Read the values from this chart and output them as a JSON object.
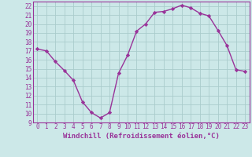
{
  "x": [
    0,
    1,
    2,
    3,
    4,
    5,
    6,
    7,
    8,
    9,
    10,
    11,
    12,
    13,
    14,
    15,
    16,
    17,
    18,
    19,
    20,
    21,
    22,
    23
  ],
  "y": [
    17.2,
    17.0,
    15.8,
    14.8,
    13.7,
    11.3,
    10.1,
    9.5,
    10.1,
    14.5,
    16.5,
    19.2,
    20.0,
    21.3,
    21.4,
    21.7,
    22.1,
    21.8,
    21.2,
    20.9,
    19.3,
    17.6,
    14.9,
    14.7
  ],
  "line_color": "#993399",
  "marker": "D",
  "marker_size": 2.2,
  "bg_color": "#cce8e8",
  "grid_color": "#aacccc",
  "xlabel": "Windchill (Refroidissement éolien,°C)",
  "xlim": [
    -0.5,
    23.5
  ],
  "ylim": [
    9,
    22.5
  ],
  "xticks": [
    0,
    1,
    2,
    3,
    4,
    5,
    6,
    7,
    8,
    9,
    10,
    11,
    12,
    13,
    14,
    15,
    16,
    17,
    18,
    19,
    20,
    21,
    22,
    23
  ],
  "yticks": [
    9,
    10,
    11,
    12,
    13,
    14,
    15,
    16,
    17,
    18,
    19,
    20,
    21,
    22
  ],
  "tick_label_fontsize": 5.5,
  "xlabel_fontsize": 6.5,
  "line_width": 1.0
}
